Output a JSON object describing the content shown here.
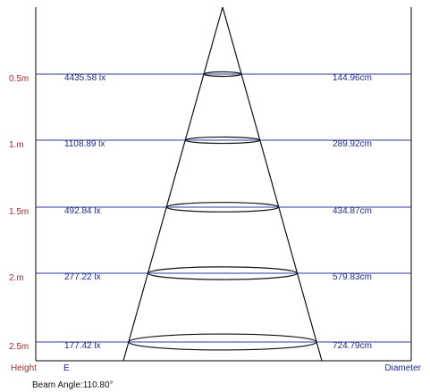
{
  "chart_data": {
    "type": "diagram",
    "beam_angle_label": "Beam Angle:110.80°",
    "footer": {
      "height_label": "Height",
      "e_label": "E",
      "diameter_label": "Diameter"
    },
    "rows": [
      {
        "height": "0.5m",
        "illuminance": "4435.58 lx",
        "diameter": "144.96cm"
      },
      {
        "height": "1.m",
        "illuminance": "1108.89 lx",
        "diameter": "289.92cm"
      },
      {
        "height": "1.5m",
        "illuminance": "492.84 lx",
        "diameter": "434.87cm"
      },
      {
        "height": "2.m",
        "illuminance": "277.22 lx",
        "diameter": "579.83cm"
      },
      {
        "height": "2.5m",
        "illuminance": "177.42 lx",
        "diameter": "724.79cm"
      }
    ]
  },
  "colors": {
    "frame": "#000000",
    "grid": "#2f3aa0",
    "height_text": "#b02a2a",
    "value_text": "#1f2a88",
    "cone": "#111111"
  }
}
